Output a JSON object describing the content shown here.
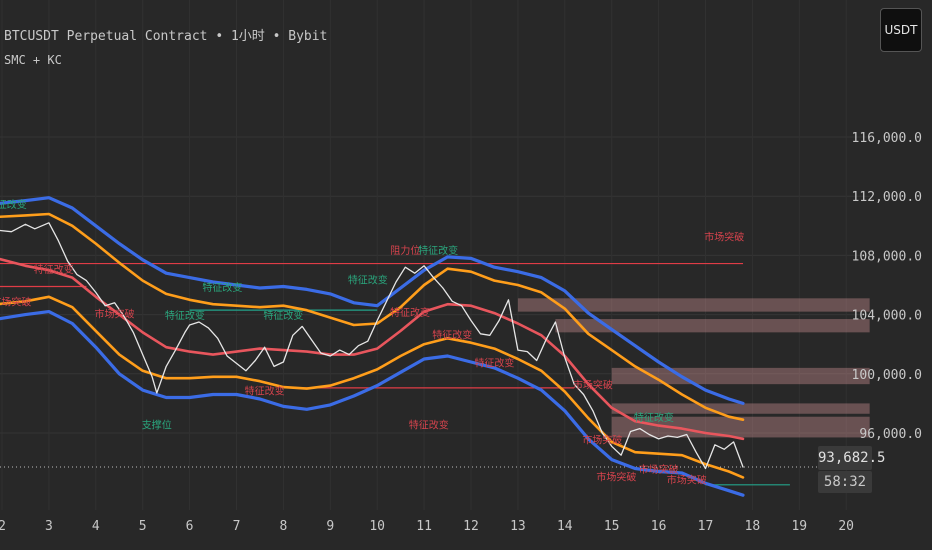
{
  "header": {
    "title": "BTCUSDT Perpetual Contract • 1小时 • Bybit",
    "indicator": "SMC + KC"
  },
  "currency_button": "USDT",
  "last_price": {
    "price": "93,682.5",
    "countdown": "58:32"
  },
  "colors": {
    "background": "#282828",
    "upper_band": "#3b6ce6",
    "mid_line": "#ff9e1b",
    "basis_line": "#e8565d",
    "level_red": "#e03c46",
    "level_green": "#23a38a",
    "label_green": "#2aa67d",
    "label_red": "#d6434d",
    "zone": "#f4a7ab"
  },
  "chart_data": {
    "type": "line",
    "x_ticks": [
      "2",
      "3",
      "4",
      "5",
      "6",
      "7",
      "8",
      "9",
      "10",
      "11",
      "12",
      "13",
      "14",
      "15",
      "16",
      "17",
      "18",
      "19",
      "20"
    ],
    "y_ticks": [
      "96,000.0",
      "100,000.0",
      "104,000.0",
      "108,000.0",
      "112,000.0",
      "116,000.0"
    ],
    "ylim": [
      90500,
      121000
    ],
    "series": [
      {
        "role": "keltner-upper",
        "color": "#3b6ce6",
        "points": [
          [
            1.9,
            111500
          ],
          [
            2.5,
            111700
          ],
          [
            3,
            111900
          ],
          [
            3.5,
            111200
          ],
          [
            4,
            110000
          ],
          [
            4.5,
            108800
          ],
          [
            5,
            107700
          ],
          [
            5.5,
            106800
          ],
          [
            6,
            106500
          ],
          [
            6.5,
            106200
          ],
          [
            7,
            106000
          ],
          [
            7.5,
            105800
          ],
          [
            8,
            105900
          ],
          [
            8.5,
            105700
          ],
          [
            9,
            105400
          ],
          [
            9.5,
            104800
          ],
          [
            10,
            104600
          ],
          [
            10.5,
            105800
          ],
          [
            11,
            107000
          ],
          [
            11.5,
            107900
          ],
          [
            12,
            107800
          ],
          [
            12.5,
            107200
          ],
          [
            13,
            106900
          ],
          [
            13.5,
            106500
          ],
          [
            14,
            105600
          ],
          [
            14.5,
            104100
          ],
          [
            15,
            103000
          ],
          [
            15.5,
            101900
          ],
          [
            16,
            100800
          ],
          [
            16.5,
            99800
          ],
          [
            17,
            98900
          ],
          [
            17.5,
            98300
          ],
          [
            17.8,
            98000
          ]
        ]
      },
      {
        "role": "keltner-mid",
        "color": "#ff9e1b",
        "points": [
          [
            1.9,
            110600
          ],
          [
            2.5,
            110700
          ],
          [
            3,
            110800
          ],
          [
            3.5,
            110000
          ],
          [
            4,
            108800
          ],
          [
            4.5,
            107500
          ],
          [
            5,
            106300
          ],
          [
            5.5,
            105400
          ],
          [
            6,
            105000
          ],
          [
            6.5,
            104700
          ],
          [
            7,
            104600
          ],
          [
            7.5,
            104500
          ],
          [
            8,
            104600
          ],
          [
            8.5,
            104300
          ],
          [
            9,
            103800
          ],
          [
            9.5,
            103300
          ],
          [
            10,
            103400
          ],
          [
            10.5,
            104500
          ],
          [
            11,
            106000
          ],
          [
            11.5,
            107100
          ],
          [
            12,
            106900
          ],
          [
            12.5,
            106300
          ],
          [
            13,
            106000
          ],
          [
            13.5,
            105500
          ],
          [
            14,
            104400
          ],
          [
            14.5,
            102700
          ],
          [
            15,
            101600
          ],
          [
            15.5,
            100500
          ],
          [
            16,
            99600
          ],
          [
            16.5,
            98600
          ],
          [
            17,
            97700
          ],
          [
            17.5,
            97100
          ],
          [
            17.8,
            96900
          ]
        ]
      },
      {
        "role": "basis",
        "color": "#e8565d",
        "points": [
          [
            1.9,
            107800
          ],
          [
            2.5,
            107300
          ],
          [
            3,
            107000
          ],
          [
            3.5,
            106500
          ],
          [
            4,
            105200
          ],
          [
            4.5,
            104000
          ],
          [
            5,
            102800
          ],
          [
            5.5,
            101800
          ],
          [
            6,
            101500
          ],
          [
            6.5,
            101300
          ],
          [
            7,
            101500
          ],
          [
            7.5,
            101700
          ],
          [
            8,
            101600
          ],
          [
            8.5,
            101500
          ],
          [
            9,
            101300
          ],
          [
            9.5,
            101300
          ],
          [
            10,
            101700
          ],
          [
            10.5,
            102900
          ],
          [
            11,
            104200
          ],
          [
            11.5,
            104700
          ],
          [
            12,
            104600
          ],
          [
            12.5,
            104100
          ],
          [
            13,
            103400
          ],
          [
            13.5,
            102600
          ],
          [
            14,
            101200
          ],
          [
            14.5,
            99300
          ],
          [
            15,
            97700
          ],
          [
            15.5,
            96800
          ],
          [
            16,
            96500
          ],
          [
            16.5,
            96300
          ],
          [
            17,
            96000
          ],
          [
            17.5,
            95800
          ],
          [
            17.8,
            95600
          ]
        ]
      },
      {
        "role": "keltner-lower-mid",
        "color": "#ff9e1b",
        "points": [
          [
            1.9,
            104700
          ],
          [
            2.5,
            104900
          ],
          [
            3,
            105200
          ],
          [
            3.5,
            104500
          ],
          [
            4,
            102900
          ],
          [
            4.5,
            101300
          ],
          [
            5,
            100200
          ],
          [
            5.5,
            99700
          ],
          [
            6,
            99700
          ],
          [
            6.5,
            99800
          ],
          [
            7,
            99800
          ],
          [
            7.5,
            99500
          ],
          [
            8,
            99100
          ],
          [
            8.5,
            99000
          ],
          [
            9,
            99200
          ],
          [
            9.5,
            99700
          ],
          [
            10,
            100300
          ],
          [
            10.5,
            101200
          ],
          [
            11,
            102000
          ],
          [
            11.5,
            102400
          ],
          [
            12,
            102100
          ],
          [
            12.5,
            101700
          ],
          [
            13,
            101000
          ],
          [
            13.5,
            100200
          ],
          [
            14,
            98800
          ],
          [
            14.5,
            97000
          ],
          [
            15,
            95400
          ],
          [
            15.5,
            94700
          ],
          [
            16,
            94600
          ],
          [
            16.5,
            94500
          ],
          [
            17,
            93900
          ],
          [
            17.5,
            93400
          ],
          [
            17.8,
            93000
          ]
        ]
      },
      {
        "role": "keltner-lower",
        "color": "#3b6ce6",
        "points": [
          [
            1.9,
            103700
          ],
          [
            2.5,
            104000
          ],
          [
            3,
            104200
          ],
          [
            3.5,
            103400
          ],
          [
            4,
            101800
          ],
          [
            4.5,
            100000
          ],
          [
            5,
            98900
          ],
          [
            5.5,
            98400
          ],
          [
            6,
            98400
          ],
          [
            6.5,
            98600
          ],
          [
            7,
            98600
          ],
          [
            7.5,
            98300
          ],
          [
            8,
            97800
          ],
          [
            8.5,
            97600
          ],
          [
            9,
            97900
          ],
          [
            9.5,
            98500
          ],
          [
            10,
            99200
          ],
          [
            10.5,
            100100
          ],
          [
            11,
            101000
          ],
          [
            11.5,
            101200
          ],
          [
            12,
            100800
          ],
          [
            12.5,
            100400
          ],
          [
            13,
            99700
          ],
          [
            13.5,
            98900
          ],
          [
            14,
            97500
          ],
          [
            14.5,
            95600
          ],
          [
            15,
            94200
          ],
          [
            15.5,
            93600
          ],
          [
            16,
            93400
          ],
          [
            16.5,
            93300
          ],
          [
            17,
            92600
          ],
          [
            17.5,
            92100
          ],
          [
            17.8,
            91800
          ]
        ]
      },
      {
        "role": "price-close",
        "color": "#e6e6e6",
        "points": [
          [
            1.9,
            109700
          ],
          [
            2.2,
            109600
          ],
          [
            2.5,
            110100
          ],
          [
            2.7,
            109800
          ],
          [
            3,
            110200
          ],
          [
            3.2,
            109000
          ],
          [
            3.4,
            107600
          ],
          [
            3.6,
            106700
          ],
          [
            3.8,
            106300
          ],
          [
            4,
            105500
          ],
          [
            4.2,
            104600
          ],
          [
            4.4,
            104800
          ],
          [
            4.6,
            103900
          ],
          [
            4.8,
            102800
          ],
          [
            5,
            101300
          ],
          [
            5.2,
            99800
          ],
          [
            5.3,
            98700
          ],
          [
            5.5,
            100500
          ],
          [
            5.7,
            101600
          ],
          [
            5.9,
            102800
          ],
          [
            6,
            103300
          ],
          [
            6.2,
            103500
          ],
          [
            6.4,
            103100
          ],
          [
            6.6,
            102400
          ],
          [
            6.8,
            101200
          ],
          [
            7,
            100700
          ],
          [
            7.2,
            100200
          ],
          [
            7.4,
            100900
          ],
          [
            7.6,
            101800
          ],
          [
            7.8,
            100500
          ],
          [
            8,
            100800
          ],
          [
            8.2,
            102600
          ],
          [
            8.4,
            103200
          ],
          [
            8.6,
            102300
          ],
          [
            8.8,
            101400
          ],
          [
            9,
            101200
          ],
          [
            9.2,
            101600
          ],
          [
            9.4,
            101300
          ],
          [
            9.6,
            101900
          ],
          [
            9.8,
            102200
          ],
          [
            10,
            103600
          ],
          [
            10.2,
            104900
          ],
          [
            10.4,
            106200
          ],
          [
            10.6,
            107200
          ],
          [
            10.8,
            106800
          ],
          [
            11,
            107300
          ],
          [
            11.2,
            106500
          ],
          [
            11.4,
            105800
          ],
          [
            11.6,
            104900
          ],
          [
            11.8,
            104600
          ],
          [
            12,
            103600
          ],
          [
            12.2,
            102700
          ],
          [
            12.4,
            102600
          ],
          [
            12.6,
            103600
          ],
          [
            12.8,
            105000
          ],
          [
            13,
            101600
          ],
          [
            13.2,
            101500
          ],
          [
            13.4,
            100900
          ],
          [
            13.6,
            102300
          ],
          [
            13.8,
            103500
          ],
          [
            14,
            101100
          ],
          [
            14.2,
            99300
          ],
          [
            14.4,
            98600
          ],
          [
            14.6,
            97500
          ],
          [
            14.8,
            96000
          ],
          [
            15,
            95100
          ],
          [
            15.2,
            94500
          ],
          [
            15.4,
            96100
          ],
          [
            15.6,
            96300
          ],
          [
            15.8,
            95900
          ],
          [
            16,
            95600
          ],
          [
            16.2,
            95800
          ],
          [
            16.4,
            95700
          ],
          [
            16.6,
            95900
          ],
          [
            16.8,
            94700
          ],
          [
            17,
            93600
          ],
          [
            17.2,
            95200
          ],
          [
            17.4,
            94900
          ],
          [
            17.6,
            95400
          ],
          [
            17.8,
            93700
          ]
        ]
      }
    ],
    "levels": [
      {
        "color": "#e03c46",
        "x1": 1.9,
        "x2": 17.8,
        "y": 107450
      },
      {
        "color": "#e03c46",
        "x1": 1.9,
        "x2": 3.8,
        "y": 105900
      },
      {
        "color": "#23a38a",
        "x1": 6.0,
        "x2": 10.0,
        "y": 104300
      },
      {
        "color": "#e03c46",
        "x1": 8.0,
        "x2": 14.2,
        "y": 99050
      },
      {
        "color": "#23a38a",
        "x1": 17.0,
        "x2": 18.8,
        "y": 92500
      }
    ],
    "zones": [
      {
        "x1": 13.0,
        "x2": 20.5,
        "y1": 104200,
        "y2": 105100
      },
      {
        "x1": 13.8,
        "x2": 20.5,
        "y1": 102800,
        "y2": 103700
      },
      {
        "x1": 15.0,
        "x2": 20.5,
        "y1": 99300,
        "y2": 100400
      },
      {
        "x1": 15.0,
        "x2": 20.5,
        "y1": 97300,
        "y2": 98000
      },
      {
        "x1": 15.0,
        "x2": 20.5,
        "y1": 95700,
        "y2": 97100
      }
    ],
    "labels": [
      {
        "text": "特征改变",
        "color": "#2aa67d",
        "x": 2.1,
        "y": 111200
      },
      {
        "text": "市场突破",
        "color": "#d6434d",
        "x": 2.2,
        "y": 104600
      },
      {
        "text": "特征改变",
        "color": "#d6434d",
        "x": 3.1,
        "y": 106800
      },
      {
        "text": "市场突破",
        "color": "#d6434d",
        "x": 4.4,
        "y": 103800
      },
      {
        "text": "支撑位",
        "color": "#2aa67d",
        "x": 5.3,
        "y": 96300
      },
      {
        "text": "特征改变",
        "color": "#2aa67d",
        "x": 6.7,
        "y": 105600
      },
      {
        "text": "特征改变",
        "color": "#2aa67d",
        "x": 5.9,
        "y": 103700
      },
      {
        "text": "特征改变",
        "color": "#2aa67d",
        "x": 8.0,
        "y": 103700
      },
      {
        "text": "特征改变",
        "color": "#d6434d",
        "x": 7.6,
        "y": 98600
      },
      {
        "text": "特征改变",
        "color": "#2aa67d",
        "x": 9.8,
        "y": 106100
      },
      {
        "text": "阻力位",
        "color": "#d6434d",
        "x": 10.6,
        "y": 108100
      },
      {
        "text": "特征改变",
        "color": "#2aa67d",
        "x": 11.3,
        "y": 108100
      },
      {
        "text": "特征改变",
        "color": "#d6434d",
        "x": 10.7,
        "y": 103900
      },
      {
        "text": "特征改变",
        "color": "#d6434d",
        "x": 11.6,
        "y": 102400
      },
      {
        "text": "特征改变",
        "color": "#d6434d",
        "x": 12.5,
        "y": 100500
      },
      {
        "text": "特征改变",
        "color": "#d6434d",
        "x": 11.1,
        "y": 96300
      },
      {
        "text": "市场突破",
        "color": "#d6434d",
        "x": 14.6,
        "y": 99000
      },
      {
        "text": "市场突破",
        "color": "#d6434d",
        "x": 14.8,
        "y": 95300
      },
      {
        "text": "市场突破",
        "color": "#d6434d",
        "x": 15.1,
        "y": 92800
      },
      {
        "text": "特征改变",
        "color": "#2aa67d",
        "x": 15.9,
        "y": 96800
      },
      {
        "text": "市场突破",
        "color": "#d6434d",
        "x": 16.0,
        "y": 93300
      },
      {
        "text": "市场突破",
        "color": "#d6434d",
        "x": 16.6,
        "y": 92600
      },
      {
        "text": "市场突破",
        "color": "#d6434d",
        "x": 17.4,
        "y": 109000
      }
    ]
  }
}
